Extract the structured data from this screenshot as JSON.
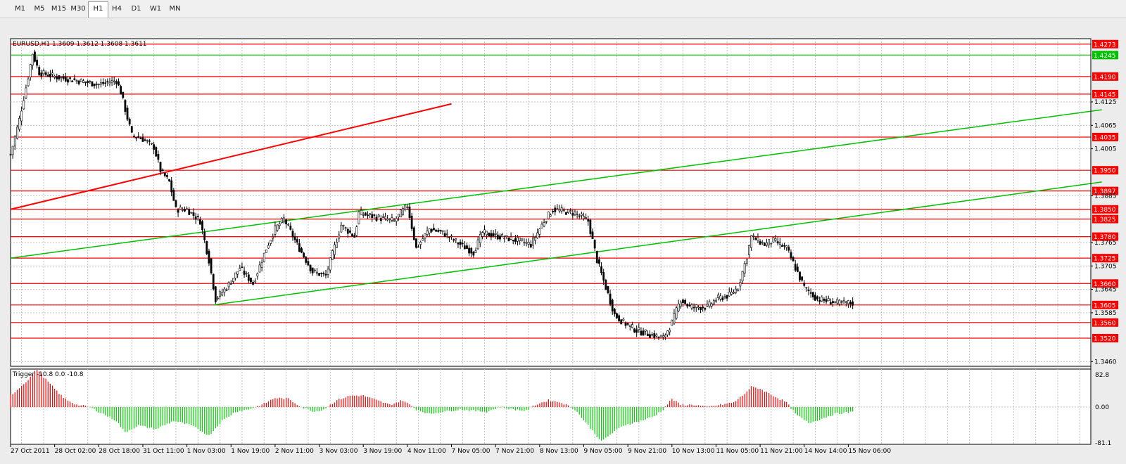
{
  "toolbar": {
    "timeframes": [
      {
        "label": "M1"
      },
      {
        "label": "M5"
      },
      {
        "label": "M15"
      },
      {
        "label": "M30"
      },
      {
        "label": "H1",
        "active": true
      },
      {
        "label": "H4"
      },
      {
        "label": "D1"
      },
      {
        "label": "W1"
      },
      {
        "label": "MN"
      }
    ]
  },
  "chart_data": [
    {
      "type": "candlestick",
      "symbol_header": "EURUSD,H1  1.3609 1.3612 1.3608 1.3611",
      "ylim": [
        1.3448,
        1.4287
      ],
      "y_ticks": [
        "1.4273",
        "1.4245",
        "1.4190",
        "1.4145",
        "1.4125",
        "1.4065",
        "1.4035",
        "1.4005",
        "1.3950",
        "1.3897",
        "1.3885",
        "1.3850",
        "1.3825",
        "1.3780",
        "1.3765",
        "1.3725",
        "1.3705",
        "1.3660",
        "1.3645",
        "1.3605",
        "1.3585",
        "1.3560",
        "1.3520",
        "1.3460"
      ],
      "highlighted_levels": [
        {
          "price": 1.4273,
          "label": "1.4273",
          "color": "#ff0000"
        },
        {
          "price": 1.4245,
          "label": "1.4245",
          "color": "#00c000"
        },
        {
          "price": 1.419,
          "label": "1.4190",
          "color": "#ff0000"
        },
        {
          "price": 1.4145,
          "label": "1.4145",
          "color": "#ff0000"
        },
        {
          "price": 1.4035,
          "label": "1.4035",
          "color": "#ff0000"
        },
        {
          "price": 1.395,
          "label": "1.3950",
          "color": "#ff0000"
        },
        {
          "price": 1.3897,
          "label": "1.3897",
          "color": "#ff0000"
        },
        {
          "price": 1.385,
          "label": "1.3850",
          "color": "#ff0000"
        },
        {
          "price": 1.3825,
          "label": "1.3825",
          "color": "#ff0000"
        },
        {
          "price": 1.378,
          "label": "1.3780",
          "color": "#ff0000"
        },
        {
          "price": 1.3725,
          "label": "1.3725",
          "color": "#ff0000"
        },
        {
          "price": 1.366,
          "label": "1.3660",
          "color": "#ff0000"
        },
        {
          "price": 1.3605,
          "label": "1.3605",
          "color": "#ff0000"
        },
        {
          "price": 1.356,
          "label": "1.3560",
          "color": "#ff0000"
        },
        {
          "price": 1.352,
          "label": "1.3520",
          "color": "#ff0000"
        }
      ],
      "trendlines": [
        {
          "color": "#ff0000",
          "points": [
            [
              0,
              1.385
            ],
            [
              200,
              1.412
            ]
          ]
        },
        {
          "color": "#00c000",
          "points": [
            [
              0,
              1.3725
            ],
            [
              495,
              1.4105
            ]
          ]
        },
        {
          "color": "#00c000",
          "points": [
            [
              92,
              1.3605
            ],
            [
              495,
              1.392
            ]
          ]
        }
      ],
      "price_path": [
        [
          0,
          1.399
        ],
        [
          4,
          1.408
        ],
        [
          8,
          1.419
        ],
        [
          10,
          1.425
        ],
        [
          13,
          1.42
        ],
        [
          20,
          1.419
        ],
        [
          30,
          1.418
        ],
        [
          40,
          1.417
        ],
        [
          48,
          1.418
        ],
        [
          50,
          1.415
        ],
        [
          55,
          1.404
        ],
        [
          60,
          1.403
        ],
        [
          65,
          1.401
        ],
        [
          68,
          1.395
        ],
        [
          72,
          1.392
        ],
        [
          75,
          1.385
        ],
        [
          80,
          1.385
        ],
        [
          86,
          1.382
        ],
        [
          90,
          1.372
        ],
        [
          93,
          1.362
        ],
        [
          98,
          1.365
        ],
        [
          104,
          1.37
        ],
        [
          110,
          1.366
        ],
        [
          116,
          1.375
        ],
        [
          120,
          1.38
        ],
        [
          124,
          1.3825
        ],
        [
          130,
          1.376
        ],
        [
          137,
          1.369
        ],
        [
          143,
          1.368
        ],
        [
          150,
          1.381
        ],
        [
          156,
          1.378
        ],
        [
          158,
          1.384
        ],
        [
          166,
          1.383
        ],
        [
          174,
          1.382
        ],
        [
          180,
          1.386
        ],
        [
          184,
          1.375
        ],
        [
          190,
          1.38
        ],
        [
          196,
          1.379
        ],
        [
          204,
          1.376
        ],
        [
          210,
          1.374
        ],
        [
          214,
          1.379
        ],
        [
          222,
          1.378
        ],
        [
          230,
          1.377
        ],
        [
          236,
          1.376
        ],
        [
          242,
          1.382
        ],
        [
          246,
          1.385
        ],
        [
          256,
          1.384
        ],
        [
          262,
          1.382
        ],
        [
          266,
          1.372
        ],
        [
          270,
          1.365
        ],
        [
          274,
          1.358
        ],
        [
          278,
          1.356
        ],
        [
          284,
          1.354
        ],
        [
          290,
          1.353
        ],
        [
          296,
          1.352
        ],
        [
          300,
          1.356
        ],
        [
          304,
          1.362
        ],
        [
          308,
          1.36
        ],
        [
          316,
          1.36
        ],
        [
          320,
          1.362
        ],
        [
          326,
          1.363
        ],
        [
          330,
          1.365
        ],
        [
          334,
          1.373
        ],
        [
          336,
          1.378
        ],
        [
          342,
          1.376
        ],
        [
          346,
          1.377
        ],
        [
          352,
          1.375
        ],
        [
          356,
          1.37
        ],
        [
          360,
          1.365
        ],
        [
          366,
          1.362
        ],
        [
          376,
          1.361
        ],
        [
          382,
          1.361
        ]
      ],
      "x_range": [
        0,
        490
      ],
      "x_tick_labels": [
        {
          "x": 0,
          "label": "27 Oct 2011"
        },
        {
          "x": 20,
          "label": "28 Oct 02:00"
        },
        {
          "x": 40,
          "label": "28 Oct 18:00"
        },
        {
          "x": 60,
          "label": "31 Oct 11:00"
        },
        {
          "x": 80,
          "label": "1 Nov 03:00"
        },
        {
          "x": 100,
          "label": "1 Nov 19:00"
        },
        {
          "x": 120,
          "label": "2 Nov 11:00"
        },
        {
          "x": 140,
          "label": "3 Nov 03:00"
        },
        {
          "x": 160,
          "label": "3 Nov 19:00"
        },
        {
          "x": 180,
          "label": "4 Nov 11:00"
        },
        {
          "x": 200,
          "label": "7 Nov 05:00"
        },
        {
          "x": 220,
          "label": "7 Nov 21:00"
        },
        {
          "x": 240,
          "label": "8 Nov 13:00"
        },
        {
          "x": 260,
          "label": "9 Nov 05:00"
        },
        {
          "x": 280,
          "label": "9 Nov 21:00"
        },
        {
          "x": 300,
          "label": "10 Nov 13:00"
        },
        {
          "x": 320,
          "label": "11 Nov 05:00"
        },
        {
          "x": 340,
          "label": "11 Nov 21:00"
        },
        {
          "x": 360,
          "label": "14 Nov 14:00"
        },
        {
          "x": 380,
          "label": "15 Nov 06:00"
        }
      ]
    },
    {
      "type": "bar",
      "indicator_label": "Trigger -10.8 0.0 -10.8",
      "ylim": [
        -81.1,
        82.8
      ],
      "y_ticks": [
        "82.8",
        "0.00",
        "-81.1"
      ],
      "positive_color": "#ff0000",
      "negative_color": "#00d000",
      "momentum_path": [
        [
          0,
          25
        ],
        [
          8,
          60
        ],
        [
          12,
          82.8
        ],
        [
          16,
          60
        ],
        [
          24,
          20
        ],
        [
          30,
          5
        ],
        [
          36,
          0
        ],
        [
          40,
          -10
        ],
        [
          48,
          -30
        ],
        [
          52,
          -55
        ],
        [
          58,
          -40
        ],
        [
          66,
          -48
        ],
        [
          74,
          -30
        ],
        [
          82,
          -40
        ],
        [
          90,
          -62
        ],
        [
          96,
          -30
        ],
        [
          102,
          -10
        ],
        [
          108,
          -5
        ],
        [
          114,
          5
        ],
        [
          120,
          20
        ],
        [
          126,
          18
        ],
        [
          132,
          0
        ],
        [
          138,
          -10
        ],
        [
          142,
          -5
        ],
        [
          148,
          15
        ],
        [
          154,
          25
        ],
        [
          160,
          25
        ],
        [
          166,
          15
        ],
        [
          172,
          5
        ],
        [
          178,
          15
        ],
        [
          184,
          -5
        ],
        [
          190,
          -15
        ],
        [
          196,
          -10
        ],
        [
          204,
          -5
        ],
        [
          210,
          -8
        ],
        [
          216,
          -10
        ],
        [
          222,
          0
        ],
        [
          228,
          -5
        ],
        [
          234,
          -8
        ],
        [
          238,
          5
        ],
        [
          244,
          15
        ],
        [
          250,
          10
        ],
        [
          256,
          -5
        ],
        [
          262,
          -40
        ],
        [
          268,
          -75
        ],
        [
          272,
          -60
        ],
        [
          278,
          -40
        ],
        [
          286,
          -30
        ],
        [
          292,
          -20
        ],
        [
          296,
          -5
        ],
        [
          300,
          18
        ],
        [
          304,
          5
        ],
        [
          310,
          5
        ],
        [
          316,
          0
        ],
        [
          322,
          5
        ],
        [
          328,
          10
        ],
        [
          332,
          25
        ],
        [
          336,
          44
        ],
        [
          340,
          40
        ],
        [
          346,
          25
        ],
        [
          352,
          10
        ],
        [
          356,
          -15
        ],
        [
          362,
          -35
        ],
        [
          368,
          -25
        ],
        [
          374,
          -15
        ],
        [
          380,
          -12
        ],
        [
          382,
          -10.8
        ]
      ]
    }
  ]
}
